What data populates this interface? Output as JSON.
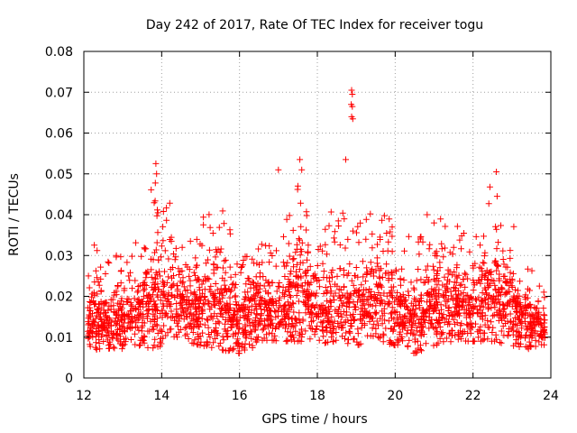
{
  "chart_data": {
    "type": "scatter",
    "title": "Day 242 of 2017, Rate Of TEC Index for receiver togu",
    "xlabel": "GPS time / hours",
    "ylabel": "ROTI / TECUs",
    "xlim": [
      12,
      24
    ],
    "ylim": [
      0,
      0.08
    ],
    "xticks": [
      12,
      14,
      16,
      18,
      20,
      22,
      24
    ],
    "yticks": [
      0,
      0.01,
      0.02,
      0.03,
      0.04,
      0.05,
      0.06,
      0.07,
      0.08
    ],
    "ytick_labels": [
      "0",
      "0.01",
      "0.02",
      "0.03",
      "0.04",
      "0.05",
      "0.06",
      "0.07",
      "0.08"
    ],
    "grid": true,
    "marker": "+",
    "series_color": "#ff0000",
    "x_range_of_data": [
      12.1,
      23.85
    ],
    "baseline_envelope": [
      {
        "x": 12.1,
        "lo": 0.007,
        "hi": 0.037
      },
      {
        "x": 12.5,
        "lo": 0.007,
        "hi": 0.028
      },
      {
        "x": 13.0,
        "lo": 0.007,
        "hi": 0.031
      },
      {
        "x": 13.4,
        "lo": 0.008,
        "hi": 0.036
      },
      {
        "x": 13.8,
        "lo": 0.007,
        "hi": 0.049
      },
      {
        "x": 14.2,
        "lo": 0.009,
        "hi": 0.045
      },
      {
        "x": 14.6,
        "lo": 0.009,
        "hi": 0.036
      },
      {
        "x": 15.0,
        "lo": 0.008,
        "hi": 0.039
      },
      {
        "x": 15.5,
        "lo": 0.007,
        "hi": 0.043
      },
      {
        "x": 16.0,
        "lo": 0.006,
        "hi": 0.03
      },
      {
        "x": 16.5,
        "lo": 0.008,
        "hi": 0.036
      },
      {
        "x": 17.0,
        "lo": 0.009,
        "hi": 0.034
      },
      {
        "x": 17.5,
        "lo": 0.009,
        "hi": 0.053
      },
      {
        "x": 18.0,
        "lo": 0.008,
        "hi": 0.035
      },
      {
        "x": 18.5,
        "lo": 0.009,
        "hi": 0.043
      },
      {
        "x": 19.0,
        "lo": 0.008,
        "hi": 0.04
      },
      {
        "x": 19.5,
        "lo": 0.009,
        "hi": 0.041
      },
      {
        "x": 20.0,
        "lo": 0.008,
        "hi": 0.043
      },
      {
        "x": 20.5,
        "lo": 0.006,
        "hi": 0.031
      },
      {
        "x": 21.0,
        "lo": 0.008,
        "hi": 0.045
      },
      {
        "x": 21.5,
        "lo": 0.009,
        "hi": 0.038
      },
      {
        "x": 22.0,
        "lo": 0.009,
        "hi": 0.035
      },
      {
        "x": 22.5,
        "lo": 0.009,
        "hi": 0.049
      },
      {
        "x": 23.0,
        "lo": 0.008,
        "hi": 0.04
      },
      {
        "x": 23.5,
        "lo": 0.007,
        "hi": 0.028
      },
      {
        "x": 23.85,
        "lo": 0.008,
        "hi": 0.021
      }
    ],
    "notable_points": [
      {
        "x": 13.85,
        "y": 0.0525
      },
      {
        "x": 13.87,
        "y": 0.05
      },
      {
        "x": 17.0,
        "y": 0.051
      },
      {
        "x": 17.5,
        "y": 0.047
      },
      {
        "x": 17.55,
        "y": 0.0535
      },
      {
        "x": 17.6,
        "y": 0.051
      },
      {
        "x": 18.73,
        "y": 0.0535
      },
      {
        "x": 18.88,
        "y": 0.0705
      },
      {
        "x": 18.9,
        "y": 0.0695
      },
      {
        "x": 18.87,
        "y": 0.067
      },
      {
        "x": 18.9,
        "y": 0.0665
      },
      {
        "x": 18.88,
        "y": 0.064
      },
      {
        "x": 18.91,
        "y": 0.0635
      },
      {
        "x": 22.6,
        "y": 0.0505
      },
      {
        "x": 22.62,
        "y": 0.0445
      }
    ],
    "approx_point_count": 2600
  }
}
